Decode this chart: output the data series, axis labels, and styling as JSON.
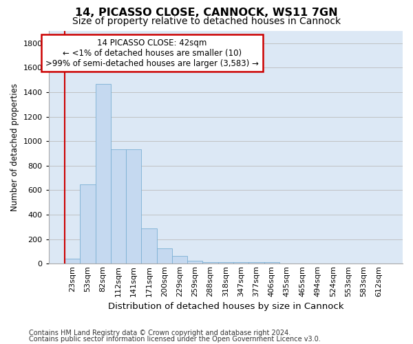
{
  "title": "14, PICASSO CLOSE, CANNOCK, WS11 7GN",
  "subtitle": "Size of property relative to detached houses in Cannock",
  "xlabel": "Distribution of detached houses by size in Cannock",
  "ylabel": "Number of detached properties",
  "categories": [
    "23sqm",
    "53sqm",
    "82sqm",
    "112sqm",
    "141sqm",
    "171sqm",
    "200sqm",
    "229sqm",
    "259sqm",
    "288sqm",
    "318sqm",
    "347sqm",
    "377sqm",
    "406sqm",
    "435sqm",
    "465sqm",
    "494sqm",
    "524sqm",
    "553sqm",
    "583sqm",
    "612sqm"
  ],
  "values": [
    40,
    650,
    1470,
    935,
    935,
    290,
    125,
    65,
    25,
    10,
    10,
    10,
    10,
    10,
    0,
    0,
    0,
    0,
    0,
    0,
    0
  ],
  "bar_color": "#c5d9f0",
  "bar_edge_color": "#7bafd4",
  "annotation_line1": "14 PICASSO CLOSE: 42sqm",
  "annotation_line2": "← <1% of detached houses are smaller (10)",
  "annotation_line3": ">99% of semi-detached houses are larger (3,583) →",
  "annotation_box_facecolor": "white",
  "annotation_box_edgecolor": "#cc0000",
  "red_line_color": "#cc0000",
  "ylim": [
    0,
    1900
  ],
  "yticks": [
    0,
    200,
    400,
    600,
    800,
    1000,
    1200,
    1400,
    1600,
    1800
  ],
  "grid_color": "#bbbbbb",
  "bg_color": "#dce8f5",
  "footer1": "Contains HM Land Registry data © Crown copyright and database right 2024.",
  "footer2": "Contains public sector information licensed under the Open Government Licence v3.0.",
  "title_fontsize": 11.5,
  "subtitle_fontsize": 10,
  "xlabel_fontsize": 9.5,
  "ylabel_fontsize": 8.5,
  "tick_fontsize": 8,
  "annotation_fontsize": 8.5,
  "footer_fontsize": 7
}
